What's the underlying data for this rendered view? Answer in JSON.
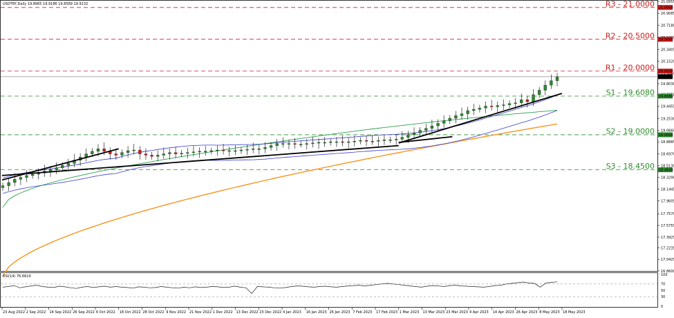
{
  "chart_data": [
    {
      "type": "candlestick",
      "symbol_header": "USDTRY,Daily 19.8965 19.9186 19.8569 19.9132",
      "last_price_label": "19.9132",
      "x_ticks": [
        "23 Aug 2022",
        "2 Sep 2022",
        "14 Sep 2022",
        "26 Sep 2022",
        "6 Oct 2022",
        "18 Oct 2022",
        "28 Oct 2022",
        "9 Nov 2022",
        "21 Nov 2022",
        "1 Dec 2022",
        "13 Dec 2022",
        "23 Dec 2022",
        "4 Jan 2023",
        "16 Jan 2023",
        "26 Jan 2023",
        "7 Feb 2023",
        "17 Feb 2023",
        "1 Mar 2023",
        "13 Mar 2023",
        "23 Mar 2023",
        "4 Apr 2023",
        "14 Apr 2023",
        "26 Apr 2023",
        "8 May 2023",
        "18 May 2023"
      ],
      "y_ticks": [
        "21.0955",
        "20.9085",
        "20.7180",
        "20.5300",
        "20.3405",
        "20.1520",
        "19.9640",
        "19.8030",
        "19.6350",
        "19.4455",
        "19.2530",
        "19.0660",
        "18.8885",
        "18.6970",
        "18.5130",
        "18.3290",
        "18.1445",
        "17.9605",
        "17.7570",
        "17.5755",
        "17.3925",
        "17.2235",
        "17.0425",
        "16.8600"
      ],
      "ylim": [
        16.86,
        21.0955
      ],
      "levels": [
        {
          "label": "R3 - 21.0000",
          "value": 21.0,
          "tag": "21.0000",
          "color": "#d01a1a",
          "kind": "resistance"
        },
        {
          "label": "R2 - 20.5000",
          "value": 20.5,
          "tag": "20.5000",
          "color": "#d01a1a",
          "kind": "resistance"
        },
        {
          "label": "R1 - 20.0000",
          "value": 20.0,
          "tag": "20.0000",
          "color": "#d01a1a",
          "kind": "resistance"
        },
        {
          "label": "S1 - 19.6080",
          "value": 19.608,
          "tag": "19.6080",
          "color": "#2e8b2e",
          "kind": "support"
        },
        {
          "label": "S2 - 19.0000",
          "value": 19.0,
          "tag": "19.0000",
          "color": "#2e8b2e",
          "kind": "support"
        },
        {
          "label": "S3 - 18.4500",
          "value": 18.45,
          "tag": "18.4500",
          "color": "#2e8b2e",
          "kind": "support"
        }
      ],
      "price_close": [
        18.2,
        18.25,
        18.3,
        18.33,
        18.36,
        18.38,
        18.4,
        18.43,
        18.45,
        18.48,
        18.52,
        18.55,
        18.6,
        18.65,
        18.7,
        18.74,
        18.78,
        18.74,
        18.7,
        18.68,
        18.72,
        18.75,
        18.76,
        18.7,
        18.68,
        18.66,
        18.68,
        18.7,
        18.72,
        18.7,
        18.71,
        18.72,
        18.73,
        18.74,
        18.74,
        18.75,
        18.76,
        18.75,
        18.75,
        18.75,
        18.76,
        18.77,
        18.78,
        18.78,
        18.8,
        18.83,
        18.86,
        18.86,
        18.86,
        18.85,
        18.85,
        18.86,
        18.87,
        18.88,
        18.88,
        18.89,
        18.89,
        18.88,
        18.89,
        18.9,
        18.91,
        18.9,
        18.9,
        18.91,
        18.92,
        18.92,
        18.93,
        18.96,
        19.0,
        19.03,
        19.07,
        19.1,
        19.14,
        19.18,
        19.22,
        19.26,
        19.3,
        19.33,
        19.38,
        19.4,
        19.42,
        19.45,
        19.44,
        19.46,
        19.47,
        19.49,
        19.5,
        19.55,
        19.52,
        19.63,
        19.7,
        19.78,
        19.85,
        19.91
      ],
      "series": [
        {
          "name": "Bollinger Upper",
          "color": "#3b3bd1"
        },
        {
          "name": "Bollinger Lower",
          "color": "#3b3bd1"
        },
        {
          "name": "MA 50",
          "color": "#2e9f4f"
        },
        {
          "name": "MA 200",
          "color": "#f7931e"
        }
      ],
      "trendlines": [
        {
          "from": [
            "23 Aug 2022",
            18.29
          ],
          "to": [
            "18 Oct 2022",
            18.78
          ]
        },
        {
          "from": [
            "23 Aug 2022",
            18.36
          ],
          "to": [
            "1 Mar 2023",
            18.83
          ]
        },
        {
          "from": [
            "1 Mar 2023",
            18.88
          ],
          "to": [
            "26 Mar 2023",
            18.97
          ]
        },
        {
          "from": [
            "1 Mar 2023",
            18.87
          ],
          "to": [
            "18 May 2023",
            19.65
          ]
        }
      ]
    },
    {
      "type": "line",
      "title": "RSI(14) 76.6619",
      "y_ticks": [
        "100",
        "70",
        "50",
        "30",
        "0"
      ],
      "ylim": [
        0,
        100
      ],
      "levels": [
        70,
        30
      ],
      "values": [
        60,
        62,
        65,
        58,
        61,
        64,
        66,
        62,
        60,
        59,
        63,
        61,
        58,
        56,
        60,
        62,
        59,
        61,
        63,
        60,
        62,
        60,
        59,
        57,
        61,
        60,
        58,
        59,
        62,
        60,
        58,
        57,
        60,
        58,
        61,
        59,
        60,
        62,
        61,
        59,
        60,
        63,
        60,
        58,
        40,
        62,
        61,
        60,
        58,
        57,
        59,
        62,
        64,
        63,
        61,
        60,
        62,
        63,
        61,
        60,
        62,
        64,
        65,
        66,
        64,
        66,
        68,
        70,
        72,
        70,
        68,
        66,
        64,
        62,
        60,
        63,
        65,
        64,
        62,
        65,
        66,
        64,
        63,
        62,
        61,
        60,
        62,
        65,
        66,
        70,
        72,
        74,
        76,
        73,
        72,
        60,
        73,
        75,
        76.66
      ]
    }
  ]
}
